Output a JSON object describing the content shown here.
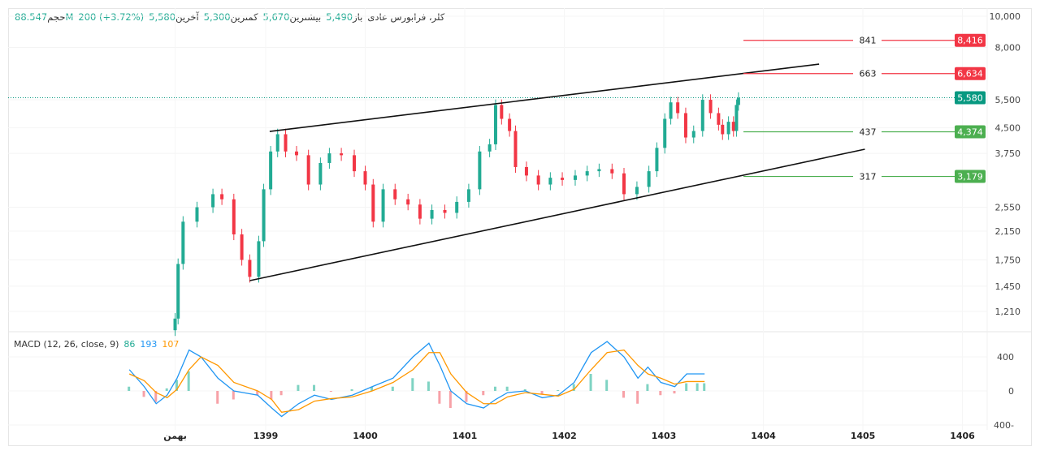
{
  "legend": {
    "symbol": "کلر، فرابورس عادی",
    "open_label": "باز",
    "open": "5,490",
    "high_label": "بیشترین",
    "high": "5,670",
    "low_label": "کمترین",
    "low": "5,300",
    "last_label": "آخرین",
    "last": "5,580",
    "change": "200 (+3.72%)",
    "volume_label": "حجم",
    "volume": "88.547M"
  },
  "macd_legend": {
    "title": "MACD (12, 26, close, 9)",
    "histogram": "86",
    "macd": "193",
    "signal": "107"
  },
  "colors": {
    "up": "#22ab94",
    "down": "#f23645",
    "macd": "#2196f3",
    "signal": "#ff9800",
    "resistance": "#f23645",
    "support": "#4caf50",
    "last_price": "#089981"
  },
  "chart_data": [
    {
      "type": "candlestick",
      "title": "",
      "yscale": "log",
      "ylim": [
        1150,
        10200
      ],
      "y_ticks": [
        "10,000",
        "8,000",
        "5,500",
        "4,500",
        "3,750",
        "2,550",
        "2,150",
        "1,750",
        "1,450",
        "1,210"
      ],
      "y_tick_values": [
        10000,
        8000,
        5500,
        4500,
        3750,
        2550,
        2150,
        1750,
        1450,
        1210
      ],
      "x_ticks": [
        "بهمن",
        "1399",
        "1400",
        "1401",
        "1402",
        "1403",
        "1404",
        "1405",
        "1406"
      ],
      "x_tick_values": [
        1398.09,
        1399,
        1400,
        1401,
        1402,
        1403,
        1404,
        1405,
        1406
      ],
      "xlim": [
        1397.45,
        1406.3
      ],
      "grid": true,
      "x": [
        1398.09,
        1398.12,
        1398.17,
        1398.31,
        1398.47,
        1398.56,
        1398.68,
        1398.76,
        1398.84,
        1398.93,
        1398.98,
        1399.05,
        1399.12,
        1399.2,
        1399.31,
        1399.43,
        1399.55,
        1399.64,
        1399.76,
        1399.89,
        1400.0,
        1400.08,
        1400.18,
        1400.3,
        1400.43,
        1400.55,
        1400.67,
        1400.8,
        1400.92,
        1401.04,
        1401.15,
        1401.25,
        1401.31,
        1401.37,
        1401.45,
        1401.51,
        1401.62,
        1401.74,
        1401.86,
        1401.98,
        1402.11,
        1402.23,
        1402.35,
        1402.48,
        1402.6,
        1402.73,
        1402.85,
        1402.93,
        1403.01,
        1403.07,
        1403.14,
        1403.22,
        1403.3,
        1403.39,
        1403.47,
        1403.55,
        1403.59,
        1403.65,
        1403.7,
        1403.73,
        1403.75
      ],
      "close": [
        1150,
        1700,
        2300,
        2550,
        2800,
        2700,
        2100,
        1750,
        1550,
        2000,
        2900,
        3800,
        4300,
        3800,
        3700,
        3000,
        3500,
        3750,
        3700,
        3300,
        3000,
        2300,
        2900,
        2700,
        2600,
        2350,
        2500,
        2450,
        2650,
        2900,
        3800,
        4000,
        5300,
        4800,
        4400,
        3400,
        3200,
        3000,
        3150,
        3100,
        3200,
        3300,
        3350,
        3250,
        2800,
        2950,
        3300,
        3900,
        4800,
        5400,
        5000,
        4200,
        4400,
        5500,
        5000,
        4600,
        4300,
        4700,
        4400,
        5300,
        5580
      ],
      "last_price": {
        "value": 5580,
        "label": "5,580"
      },
      "levels": [
        {
          "value": 8416,
          "label": "8,416",
          "note": "841",
          "kind": "resistance"
        },
        {
          "value": 6634,
          "label": "6,634",
          "note": "663",
          "kind": "resistance"
        },
        {
          "value": 4374,
          "label": "4,374",
          "note": "437",
          "kind": "support"
        },
        {
          "value": 3179,
          "label": "3,179",
          "note": "317",
          "kind": "support"
        }
      ],
      "trendlines": [
        {
          "from": [
            1399.04,
            4385
          ],
          "to": [
            1404.56,
            7100
          ]
        },
        {
          "from": [
            1398.84,
            1509
          ],
          "to": [
            1405.02,
            3862
          ]
        }
      ]
    },
    {
      "type": "line",
      "title": "MACD (12, 26, close, 9)",
      "ylim": [
        -400,
        400
      ],
      "y_ticks": [
        "400",
        "0",
        "400-"
      ],
      "y_tick_values": [
        400,
        0,
        -400
      ],
      "x": [
        1397.63,
        1397.78,
        1397.9,
        1398.01,
        1398.11,
        1398.23,
        1398.35,
        1398.52,
        1398.68,
        1398.92,
        1399.06,
        1399.16,
        1399.33,
        1399.49,
        1399.66,
        1399.87,
        1400.07,
        1400.28,
        1400.48,
        1400.64,
        1400.75,
        1400.86,
        1401.02,
        1401.19,
        1401.31,
        1401.43,
        1401.61,
        1401.78,
        1401.94,
        1402.1,
        1402.27,
        1402.43,
        1402.6,
        1402.74,
        1402.84,
        1402.97,
        1403.11,
        1403.23,
        1403.34,
        1403.41
      ],
      "series": [
        {
          "name": "MACD",
          "values": [
            250,
            50,
            -150,
            -50,
            150,
            480,
            400,
            150,
            0,
            -50,
            -200,
            -300,
            -150,
            -50,
            -100,
            -50,
            50,
            150,
            400,
            560,
            300,
            0,
            -150,
            -200,
            -100,
            -20,
            0,
            -80,
            -50,
            100,
            450,
            580,
            400,
            150,
            280,
            100,
            50,
            200,
            200,
            200
          ]
        },
        {
          "name": "Signal",
          "values": [
            200,
            120,
            -20,
            -80,
            20,
            250,
            400,
            300,
            100,
            0,
            -100,
            -250,
            -220,
            -120,
            -90,
            -70,
            0,
            100,
            250,
            450,
            450,
            200,
            -20,
            -150,
            -150,
            -70,
            -20,
            -40,
            -60,
            20,
            250,
            450,
            480,
            300,
            200,
            150,
            80,
            110,
            110,
            110
          ]
        }
      ]
    }
  ]
}
